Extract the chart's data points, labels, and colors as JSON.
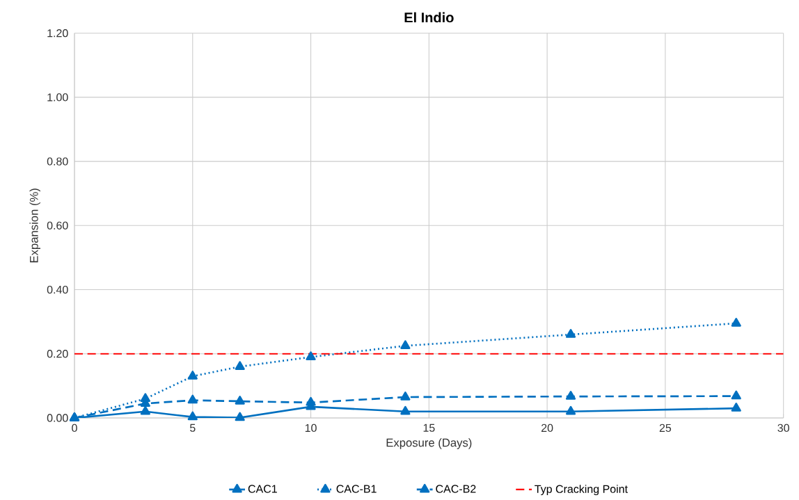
{
  "chart_data": {
    "type": "line",
    "title": "El Indio",
    "xlabel": "Exposure (Days)",
    "ylabel": "Expansion (%)",
    "x": [
      0,
      3,
      5,
      7,
      10,
      14,
      21,
      28
    ],
    "series": [
      {
        "name": "CAC1",
        "color": "#0070c0",
        "line_style": "solid",
        "marker": "triangle",
        "values": [
          0,
          0.02,
          0.003,
          0.001,
          0.035,
          0.02,
          0.02,
          0.03
        ]
      },
      {
        "name": "CAC-B1",
        "color": "#0070c0",
        "line_style": "dotted",
        "marker": "triangle",
        "values": [
          0,
          0.06,
          0.13,
          0.16,
          0.19,
          0.225,
          0.26,
          0.295
        ]
      },
      {
        "name": "CAC-B2",
        "color": "#0070c0",
        "line_style": "dashed",
        "marker": "triangle",
        "values": [
          0,
          0.045,
          0.055,
          0.052,
          0.048,
          0.065,
          0.067,
          0.068
        ]
      }
    ],
    "ref_lines": [
      {
        "axis": "y",
        "value": 0.2,
        "label": "Typ Cracking Point",
        "color": "#ff0000",
        "line_style": "dashed"
      }
    ],
    "xlim": [
      0,
      30
    ],
    "ylim": [
      0,
      1.2
    ],
    "xticks": [
      0,
      5,
      10,
      15,
      20,
      25,
      30
    ],
    "yticks": [
      {
        "value": 0,
        "label": "0.00"
      },
      {
        "value": 0.2,
        "label": "0.20"
      },
      {
        "value": 0.4,
        "label": "0.40"
      },
      {
        "value": 0.6,
        "label": "0.60"
      },
      {
        "value": 0.8,
        "label": "0.80"
      },
      {
        "value": 1.0,
        "label": "1.00"
      },
      {
        "value": 1.2,
        "label": "1.20"
      }
    ],
    "grid": true,
    "legend": "bottom"
  }
}
